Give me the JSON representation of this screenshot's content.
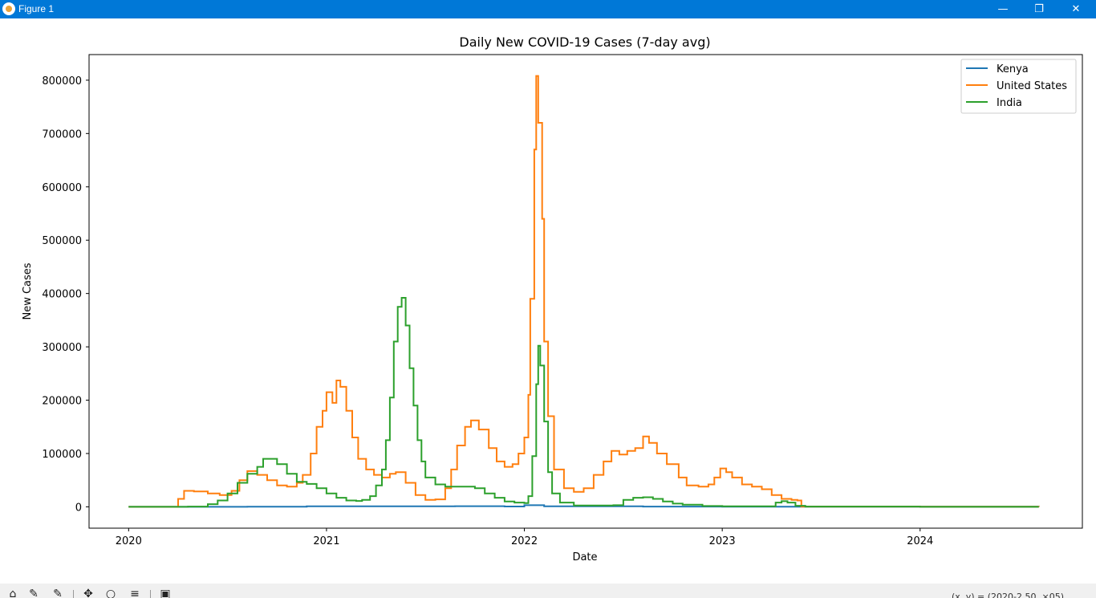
{
  "window": {
    "title": "Figure 1",
    "minimize_glyph": "—",
    "maximize_glyph": "❐",
    "close_glyph": "✕"
  },
  "toolbar": {
    "icons": [
      "home-icon",
      "back-icon",
      "forward-icon",
      "pan-icon",
      "zoom-icon",
      "configure-icon",
      "save-icon"
    ],
    "coords_text": "(x, y) = (2020-2.50, ×05)"
  },
  "chart_data": {
    "type": "line",
    "title": "Daily New COVID-19 Cases (7-day avg)",
    "xlabel": "Date",
    "ylabel": "New Cases",
    "xlim": [
      2019.8,
      2024.82
    ],
    "ylim": [
      -40000,
      848000
    ],
    "xticks": [
      {
        "v": 2020,
        "label": "2020"
      },
      {
        "v": 2021,
        "label": "2021"
      },
      {
        "v": 2022,
        "label": "2022"
      },
      {
        "v": 2023,
        "label": "2023"
      },
      {
        "v": 2024,
        "label": "2024"
      }
    ],
    "yticks": [
      {
        "v": 0,
        "label": "0"
      },
      {
        "v": 100000,
        "label": "100000"
      },
      {
        "v": 200000,
        "label": "200000"
      },
      {
        "v": 300000,
        "label": "300000"
      },
      {
        "v": 400000,
        "label": "400000"
      },
      {
        "v": 500000,
        "label": "500000"
      },
      {
        "v": 600000,
        "label": "600000"
      },
      {
        "v": 700000,
        "label": "700000"
      },
      {
        "v": 800000,
        "label": "800000"
      }
    ],
    "grid": false,
    "legend": "top-right",
    "series": [
      {
        "name": "Kenya",
        "color": "#1f77b4",
        "points": [
          [
            2020.0,
            0
          ],
          [
            2020.6,
            300
          ],
          [
            2020.9,
            1000
          ],
          [
            2021.2,
            1000
          ],
          [
            2021.45,
            1000
          ],
          [
            2021.65,
            1200
          ],
          [
            2021.9,
            600
          ],
          [
            2022.0,
            3000
          ],
          [
            2022.1,
            1000
          ],
          [
            2022.6,
            500
          ],
          [
            2023.0,
            300
          ],
          [
            2024.0,
            200
          ],
          [
            2024.6,
            0
          ]
        ]
      },
      {
        "name": "United States",
        "color": "#ff7f0e",
        "points": [
          [
            2020.0,
            0
          ],
          [
            2020.2,
            0
          ],
          [
            2020.25,
            15000
          ],
          [
            2020.28,
            30000
          ],
          [
            2020.33,
            29000
          ],
          [
            2020.4,
            25000
          ],
          [
            2020.46,
            22000
          ],
          [
            2020.52,
            30000
          ],
          [
            2020.56,
            50000
          ],
          [
            2020.6,
            67000
          ],
          [
            2020.65,
            60000
          ],
          [
            2020.7,
            50000
          ],
          [
            2020.75,
            40000
          ],
          [
            2020.8,
            38000
          ],
          [
            2020.85,
            45000
          ],
          [
            2020.88,
            60000
          ],
          [
            2020.92,
            100000
          ],
          [
            2020.95,
            150000
          ],
          [
            2020.98,
            180000
          ],
          [
            2021.0,
            215000
          ],
          [
            2021.03,
            195000
          ],
          [
            2021.05,
            237000
          ],
          [
            2021.07,
            225000
          ],
          [
            2021.1,
            180000
          ],
          [
            2021.13,
            130000
          ],
          [
            2021.16,
            90000
          ],
          [
            2021.2,
            70000
          ],
          [
            2021.24,
            60000
          ],
          [
            2021.28,
            55000
          ],
          [
            2021.32,
            62000
          ],
          [
            2021.35,
            65000
          ],
          [
            2021.4,
            45000
          ],
          [
            2021.45,
            22000
          ],
          [
            2021.5,
            13000
          ],
          [
            2021.55,
            14000
          ],
          [
            2021.6,
            35000
          ],
          [
            2021.63,
            70000
          ],
          [
            2021.66,
            115000
          ],
          [
            2021.7,
            150000
          ],
          [
            2021.73,
            162000
          ],
          [
            2021.77,
            145000
          ],
          [
            2021.82,
            110000
          ],
          [
            2021.86,
            85000
          ],
          [
            2021.9,
            75000
          ],
          [
            2021.94,
            80000
          ],
          [
            2021.97,
            100000
          ],
          [
            2022.0,
            130000
          ],
          [
            2022.02,
            210000
          ],
          [
            2022.03,
            390000
          ],
          [
            2022.05,
            670000
          ],
          [
            2022.06,
            808000
          ],
          [
            2022.07,
            720000
          ],
          [
            2022.09,
            540000
          ],
          [
            2022.1,
            310000
          ],
          [
            2022.12,
            170000
          ],
          [
            2022.15,
            70000
          ],
          [
            2022.2,
            35000
          ],
          [
            2022.25,
            28000
          ],
          [
            2022.3,
            35000
          ],
          [
            2022.35,
            60000
          ],
          [
            2022.4,
            85000
          ],
          [
            2022.44,
            105000
          ],
          [
            2022.48,
            98000
          ],
          [
            2022.52,
            105000
          ],
          [
            2022.56,
            110000
          ],
          [
            2022.6,
            132000
          ],
          [
            2022.63,
            120000
          ],
          [
            2022.67,
            100000
          ],
          [
            2022.72,
            80000
          ],
          [
            2022.78,
            55000
          ],
          [
            2022.82,
            40000
          ],
          [
            2022.88,
            38000
          ],
          [
            2022.93,
            42000
          ],
          [
            2022.96,
            55000
          ],
          [
            2022.99,
            72000
          ],
          [
            2023.02,
            65000
          ],
          [
            2023.05,
            55000
          ],
          [
            2023.1,
            42000
          ],
          [
            2023.15,
            38000
          ],
          [
            2023.2,
            33000
          ],
          [
            2023.25,
            22000
          ],
          [
            2023.3,
            15000
          ],
          [
            2023.35,
            13000
          ],
          [
            2023.38,
            12000
          ],
          [
            2023.4,
            500
          ],
          [
            2024.0,
            200
          ],
          [
            2024.6,
            0
          ]
        ]
      },
      {
        "name": "India",
        "color": "#2ca02c",
        "points": [
          [
            2020.0,
            0
          ],
          [
            2020.2,
            0
          ],
          [
            2020.3,
            500
          ],
          [
            2020.4,
            5000
          ],
          [
            2020.45,
            12000
          ],
          [
            2020.5,
            25000
          ],
          [
            2020.55,
            45000
          ],
          [
            2020.6,
            62000
          ],
          [
            2020.65,
            75000
          ],
          [
            2020.68,
            90000
          ],
          [
            2020.72,
            90000
          ],
          [
            2020.75,
            80000
          ],
          [
            2020.8,
            62000
          ],
          [
            2020.85,
            47000
          ],
          [
            2020.9,
            43000
          ],
          [
            2020.95,
            35000
          ],
          [
            2021.0,
            25000
          ],
          [
            2021.05,
            17000
          ],
          [
            2021.1,
            12000
          ],
          [
            2021.15,
            11000
          ],
          [
            2021.18,
            13000
          ],
          [
            2021.22,
            20000
          ],
          [
            2021.25,
            40000
          ],
          [
            2021.28,
            70000
          ],
          [
            2021.3,
            125000
          ],
          [
            2021.32,
            205000
          ],
          [
            2021.34,
            310000
          ],
          [
            2021.36,
            375000
          ],
          [
            2021.38,
            392000
          ],
          [
            2021.4,
            340000
          ],
          [
            2021.42,
            260000
          ],
          [
            2021.44,
            190000
          ],
          [
            2021.46,
            125000
          ],
          [
            2021.48,
            85000
          ],
          [
            2021.5,
            55000
          ],
          [
            2021.55,
            42000
          ],
          [
            2021.6,
            38000
          ],
          [
            2021.65,
            38000
          ],
          [
            2021.7,
            38000
          ],
          [
            2021.75,
            35000
          ],
          [
            2021.8,
            25000
          ],
          [
            2021.85,
            17000
          ],
          [
            2021.9,
            10000
          ],
          [
            2021.95,
            8000
          ],
          [
            2022.0,
            7000
          ],
          [
            2022.02,
            20000
          ],
          [
            2022.04,
            95000
          ],
          [
            2022.06,
            230000
          ],
          [
            2022.07,
            302000
          ],
          [
            2022.08,
            265000
          ],
          [
            2022.1,
            160000
          ],
          [
            2022.12,
            65000
          ],
          [
            2022.14,
            25000
          ],
          [
            2022.18,
            8000
          ],
          [
            2022.25,
            2500
          ],
          [
            2022.35,
            2500
          ],
          [
            2022.45,
            3000
          ],
          [
            2022.5,
            13000
          ],
          [
            2022.55,
            17000
          ],
          [
            2022.6,
            18000
          ],
          [
            2022.65,
            15000
          ],
          [
            2022.7,
            10000
          ],
          [
            2022.75,
            6000
          ],
          [
            2022.8,
            4000
          ],
          [
            2022.9,
            1500
          ],
          [
            2023.0,
            1000
          ],
          [
            2023.2,
            1000
          ],
          [
            2023.27,
            8000
          ],
          [
            2023.3,
            10500
          ],
          [
            2023.33,
            8000
          ],
          [
            2023.37,
            2000
          ],
          [
            2023.42,
            500
          ],
          [
            2024.0,
            0
          ],
          [
            2024.6,
            0
          ]
        ]
      }
    ]
  }
}
